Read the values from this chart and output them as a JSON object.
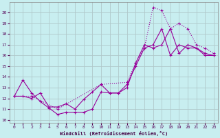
{
  "xlabel": "Windchill (Refroidissement éolien,°C)",
  "bg_color": "#c8eef0",
  "grid_color": "#b0c8ca",
  "line_color": "#990099",
  "xlim": [
    -0.5,
    23.5
  ],
  "ylim": [
    9.7,
    21.0
  ],
  "xticks": [
    0,
    1,
    2,
    3,
    4,
    5,
    6,
    7,
    8,
    9,
    10,
    11,
    12,
    13,
    14,
    15,
    16,
    17,
    18,
    19,
    20,
    21,
    22,
    23
  ],
  "yticks": [
    10,
    11,
    12,
    13,
    14,
    15,
    16,
    17,
    18,
    19,
    20
  ],
  "line1_x": [
    0,
    1,
    2,
    3,
    4,
    5,
    6,
    7,
    8,
    9,
    10,
    11,
    12,
    13,
    14,
    15,
    16,
    17,
    18,
    19,
    20,
    21,
    22,
    23
  ],
  "line1_y": [
    12.2,
    13.7,
    12.5,
    11.7,
    11.1,
    10.5,
    10.7,
    10.7,
    10.7,
    11.0,
    12.6,
    12.5,
    12.5,
    13.3,
    15.0,
    16.7,
    17.0,
    18.5,
    16.0,
    17.0,
    16.7,
    16.7,
    16.0,
    16.0
  ],
  "line2_x": [
    0,
    1,
    2,
    3,
    4,
    5,
    6,
    7,
    8,
    9,
    10,
    11,
    12,
    13,
    14,
    15,
    16,
    17,
    18,
    19,
    20,
    21,
    22,
    23
  ],
  "line2_y": [
    12.2,
    12.2,
    12.0,
    12.5,
    11.2,
    11.2,
    11.5,
    11.0,
    11.9,
    12.6,
    13.3,
    12.5,
    12.5,
    13.0,
    15.3,
    17.0,
    16.7,
    17.0,
    18.5,
    16.2,
    17.0,
    16.7,
    16.2,
    16.0
  ],
  "line3_x": [
    0,
    2,
    5,
    10,
    13,
    14,
    15,
    16,
    17,
    18,
    19,
    20,
    21,
    22,
    23
  ],
  "line3_y": [
    12.2,
    12.2,
    11.0,
    13.3,
    13.5,
    15.3,
    16.7,
    20.5,
    20.2,
    18.5,
    19.0,
    18.5,
    17.0,
    16.7,
    16.2
  ]
}
